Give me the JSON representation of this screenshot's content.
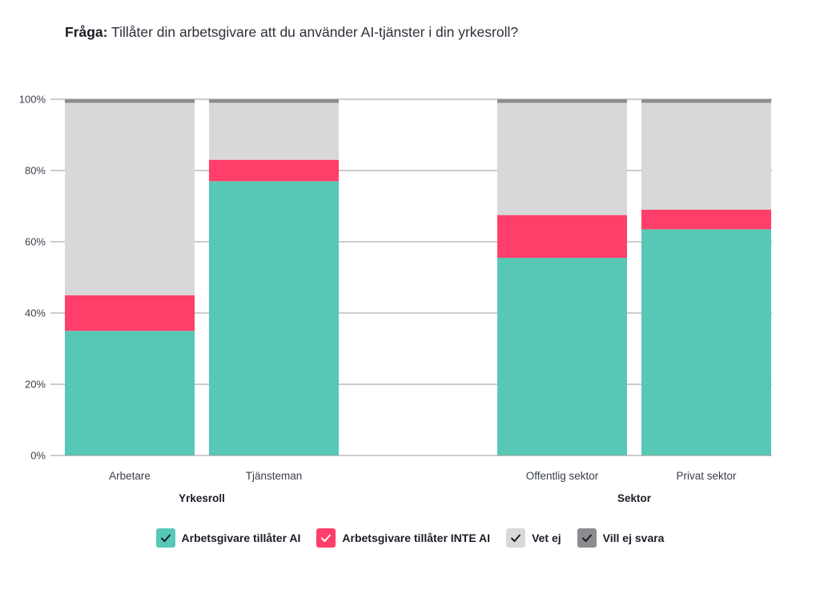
{
  "question": {
    "prefix": "Fråga:",
    "text": "Tillåter din arbetsgivare att du använder AI-tjänster i din yrkesroll?"
  },
  "chart_data": {
    "type": "bar",
    "stacked": true,
    "orientation": "vertical",
    "unit": "percent",
    "ylim": [
      0,
      100
    ],
    "yticks": [
      "0%",
      "20%",
      "40%",
      "60%",
      "80%",
      "100%"
    ],
    "grid": true,
    "legend_position": "bottom-center",
    "groups": [
      {
        "name": "Yrkesroll",
        "categories": [
          "Arbetare",
          "Tjänsteman"
        ]
      },
      {
        "name": "Sektor",
        "categories": [
          "Offentlig sektor",
          "Privat sektor"
        ]
      }
    ],
    "categories": [
      "Arbetare",
      "Tjänsteman",
      "Offentlig sektor",
      "Privat sektor"
    ],
    "series": [
      {
        "name": "Arbetsgivare tillåter AI",
        "color": "#56c8b5",
        "values": [
          35,
          77,
          55.5,
          63.5
        ]
      },
      {
        "name": "Arbetsgivare tillåter INTE AI",
        "color": "#ff3e69",
        "values": [
          10,
          6,
          12,
          5.5
        ]
      },
      {
        "name": "Vet ej",
        "color": "#d8d8d8",
        "values": [
          54,
          16,
          31.5,
          30
        ]
      },
      {
        "name": "Vill ej svara",
        "color": "#8b8b90",
        "values": [
          1,
          1,
          1,
          1
        ]
      }
    ]
  },
  "legend": {
    "check_icon": "check-icon",
    "items": [
      {
        "label": "Arbetsgivare tillåter AI",
        "color": "#56c8b5",
        "check_color": "#1a1d26"
      },
      {
        "label": "Arbetsgivare tillåter INTE AI",
        "color": "#ff3e69",
        "check_color": "#ffffff"
      },
      {
        "label": "Vet ej",
        "color": "#d8d8d8",
        "check_color": "#1a1d26"
      },
      {
        "label": "Vill ej svara",
        "color": "#8b8b90",
        "check_color": "#1a1d26"
      }
    ]
  }
}
